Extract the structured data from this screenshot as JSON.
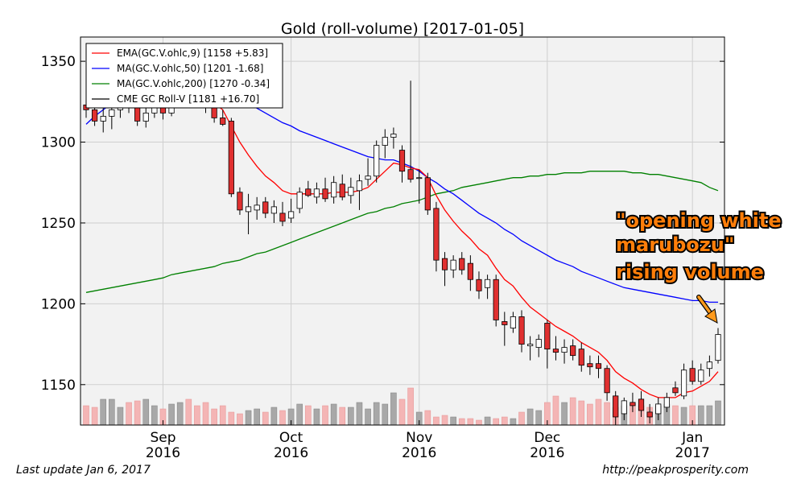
{
  "chart_data": {
    "type": "candlestick",
    "title": "Gold (roll-volume)  [2017-01-05]",
    "y_ticks": [
      1150,
      1200,
      1250,
      1300,
      1350
    ],
    "ylim": [
      1125,
      1365
    ],
    "x_ticks": [
      {
        "month": "Sep",
        "year": "2016"
      },
      {
        "month": "Oct",
        "year": "2016"
      },
      {
        "month": "Nov",
        "year": "2016"
      },
      {
        "month": "Dec",
        "year": "2016"
      },
      {
        "month": "Jan",
        "year": "2017"
      }
    ],
    "grid": true,
    "legend_placement": "top-left",
    "legend": [
      {
        "label": "EMA(GC.V.ohlc,9) [1158 +5.83]",
        "color": "#ff0000"
      },
      {
        "label": "MA(GC.V.ohlc,50) [1201 -1.68]",
        "color": "#0000ff"
      },
      {
        "label": "MA(GC.V.ohlc,200) [1270 -0.34]",
        "color": "#008000"
      },
      {
        "label": "CME GC Roll-V [1181 +16.70]",
        "color": "#000000"
      }
    ],
    "candles": [
      {
        "o": 1323,
        "h": 1330,
        "l": 1315,
        "c": 1320
      },
      {
        "o": 1320,
        "h": 1326,
        "l": 1310,
        "c": 1313
      },
      {
        "o": 1313,
        "h": 1322,
        "l": 1306,
        "c": 1316
      },
      {
        "o": 1316,
        "h": 1325,
        "l": 1308,
        "c": 1320
      },
      {
        "o": 1320,
        "h": 1330,
        "l": 1315,
        "c": 1325
      },
      {
        "o": 1325,
        "h": 1332,
        "l": 1318,
        "c": 1322
      },
      {
        "o": 1322,
        "h": 1328,
        "l": 1310,
        "c": 1313
      },
      {
        "o": 1313,
        "h": 1322,
        "l": 1309,
        "c": 1318
      },
      {
        "o": 1318,
        "h": 1330,
        "l": 1315,
        "c": 1325
      },
      {
        "o": 1325,
        "h": 1332,
        "l": 1314,
        "c": 1318
      },
      {
        "o": 1318,
        "h": 1340,
        "l": 1316,
        "c": 1338
      },
      {
        "o": 1338,
        "h": 1345,
        "l": 1335,
        "c": 1340
      },
      {
        "o": 1341,
        "h": 1346,
        "l": 1330,
        "c": 1332
      },
      {
        "o": 1331,
        "h": 1336,
        "l": 1322,
        "c": 1325
      },
      {
        "o": 1325,
        "h": 1330,
        "l": 1318,
        "c": 1322
      },
      {
        "o": 1323,
        "h": 1328,
        "l": 1312,
        "c": 1315
      },
      {
        "o": 1315,
        "h": 1320,
        "l": 1310,
        "c": 1311
      },
      {
        "o": 1313,
        "h": 1315,
        "l": 1266,
        "c": 1268
      },
      {
        "o": 1269,
        "h": 1272,
        "l": 1255,
        "c": 1258
      },
      {
        "o": 1257,
        "h": 1268,
        "l": 1243,
        "c": 1260
      },
      {
        "o": 1258,
        "h": 1266,
        "l": 1252,
        "c": 1261
      },
      {
        "o": 1263,
        "h": 1266,
        "l": 1253,
        "c": 1256
      },
      {
        "o": 1256,
        "h": 1264,
        "l": 1250,
        "c": 1260
      },
      {
        "o": 1256,
        "h": 1263,
        "l": 1248,
        "c": 1251
      },
      {
        "o": 1253,
        "h": 1265,
        "l": 1250,
        "c": 1257
      },
      {
        "o": 1259,
        "h": 1272,
        "l": 1256,
        "c": 1269
      },
      {
        "o": 1271,
        "h": 1276,
        "l": 1266,
        "c": 1267
      },
      {
        "o": 1266,
        "h": 1275,
        "l": 1262,
        "c": 1271
      },
      {
        "o": 1271,
        "h": 1278,
        "l": 1263,
        "c": 1265
      },
      {
        "o": 1266,
        "h": 1279,
        "l": 1262,
        "c": 1275
      },
      {
        "o": 1274,
        "h": 1280,
        "l": 1264,
        "c": 1266
      },
      {
        "o": 1267,
        "h": 1278,
        "l": 1262,
        "c": 1272
      },
      {
        "o": 1270,
        "h": 1280,
        "l": 1258,
        "c": 1276
      },
      {
        "o": 1277,
        "h": 1290,
        "l": 1273,
        "c": 1279
      },
      {
        "o": 1279,
        "h": 1301,
        "l": 1275,
        "c": 1298
      },
      {
        "o": 1298,
        "h": 1308,
        "l": 1290,
        "c": 1303
      },
      {
        "o": 1303,
        "h": 1309,
        "l": 1296,
        "c": 1305
      },
      {
        "o": 1295,
        "h": 1298,
        "l": 1275,
        "c": 1282
      },
      {
        "o": 1283,
        "h": 1338,
        "l": 1275,
        "c": 1277
      },
      {
        "o": 1278,
        "h": 1283,
        "l": 1262,
        "c": 1278
      },
      {
        "o": 1278,
        "h": 1281,
        "l": 1255,
        "c": 1258
      },
      {
        "o": 1259,
        "h": 1263,
        "l": 1220,
        "c": 1227
      },
      {
        "o": 1228,
        "h": 1232,
        "l": 1211,
        "c": 1221
      },
      {
        "o": 1221,
        "h": 1230,
        "l": 1216,
        "c": 1227
      },
      {
        "o": 1228,
        "h": 1232,
        "l": 1218,
        "c": 1221
      },
      {
        "o": 1225,
        "h": 1230,
        "l": 1208,
        "c": 1215
      },
      {
        "o": 1215,
        "h": 1220,
        "l": 1203,
        "c": 1208
      },
      {
        "o": 1210,
        "h": 1218,
        "l": 1203,
        "c": 1215
      },
      {
        "o": 1215,
        "h": 1218,
        "l": 1186,
        "c": 1190
      },
      {
        "o": 1189,
        "h": 1195,
        "l": 1174,
        "c": 1187
      },
      {
        "o": 1185,
        "h": 1195,
        "l": 1182,
        "c": 1192
      },
      {
        "o": 1192,
        "h": 1196,
        "l": 1170,
        "c": 1175
      },
      {
        "o": 1174,
        "h": 1180,
        "l": 1165,
        "c": 1175
      },
      {
        "o": 1173,
        "h": 1181,
        "l": 1167,
        "c": 1178
      },
      {
        "o": 1188,
        "h": 1190,
        "l": 1160,
        "c": 1172
      },
      {
        "o": 1172,
        "h": 1180,
        "l": 1165,
        "c": 1170
      },
      {
        "o": 1170,
        "h": 1178,
        "l": 1163,
        "c": 1173
      },
      {
        "o": 1174,
        "h": 1178,
        "l": 1165,
        "c": 1168
      },
      {
        "o": 1172,
        "h": 1176,
        "l": 1158,
        "c": 1162
      },
      {
        "o": 1163,
        "h": 1168,
        "l": 1156,
        "c": 1161
      },
      {
        "o": 1163,
        "h": 1168,
        "l": 1154,
        "c": 1160
      },
      {
        "o": 1160,
        "h": 1162,
        "l": 1140,
        "c": 1145
      },
      {
        "o": 1143,
        "h": 1146,
        "l": 1125,
        "c": 1130
      },
      {
        "o": 1132,
        "h": 1142,
        "l": 1128,
        "c": 1140
      },
      {
        "o": 1139,
        "h": 1145,
        "l": 1133,
        "c": 1137
      },
      {
        "o": 1141,
        "h": 1146,
        "l": 1130,
        "c": 1134
      },
      {
        "o": 1133,
        "h": 1138,
        "l": 1126,
        "c": 1130
      },
      {
        "o": 1132,
        "h": 1142,
        "l": 1128,
        "c": 1138
      },
      {
        "o": 1136,
        "h": 1145,
        "l": 1133,
        "c": 1142
      },
      {
        "o": 1148,
        "h": 1152,
        "l": 1143,
        "c": 1145
      },
      {
        "o": 1143,
        "h": 1163,
        "l": 1141,
        "c": 1159
      },
      {
        "o": 1160,
        "h": 1165,
        "l": 1150,
        "c": 1152
      },
      {
        "o": 1152,
        "h": 1163,
        "l": 1150,
        "c": 1159
      },
      {
        "o": 1160,
        "h": 1168,
        "l": 1155,
        "c": 1164
      },
      {
        "o": 1165,
        "h": 1185,
        "l": 1163,
        "c": 1181
      }
    ],
    "ema_9": [
      1329,
      1327,
      1326,
      1325,
      1325,
      1324,
      1322,
      1322,
      1322,
      1322,
      1325,
      1328,
      1329,
      1328,
      1327,
      1324,
      1320,
      1310,
      1300,
      1292,
      1285,
      1279,
      1275,
      1270,
      1268,
      1268,
      1268,
      1268,
      1268,
      1269,
      1269,
      1269,
      1270,
      1272,
      1277,
      1282,
      1287,
      1286,
      1284,
      1283,
      1278,
      1267,
      1258,
      1251,
      1245,
      1240,
      1234,
      1230,
      1222,
      1215,
      1211,
      1204,
      1198,
      1194,
      1190,
      1186,
      1183,
      1180,
      1176,
      1173,
      1170,
      1165,
      1158,
      1154,
      1151,
      1147,
      1144,
      1142,
      1142,
      1142,
      1145,
      1146,
      1149,
      1152,
      1158
    ],
    "ma_50": [
      1311,
      1316,
      1320,
      1324,
      1327,
      1330,
      1332,
      1334,
      1335,
      1336,
      1337,
      1337,
      1337,
      1337,
      1336,
      1335,
      1333,
      1330,
      1327,
      1324,
      1321,
      1318,
      1315,
      1312,
      1310,
      1307,
      1305,
      1303,
      1301,
      1299,
      1297,
      1295,
      1293,
      1291,
      1290,
      1289,
      1289,
      1287,
      1285,
      1282,
      1278,
      1275,
      1271,
      1268,
      1264,
      1260,
      1256,
      1253,
      1250,
      1246,
      1243,
      1239,
      1236,
      1233,
      1230,
      1227,
      1225,
      1223,
      1220,
      1218,
      1216,
      1214,
      1212,
      1210,
      1209,
      1208,
      1207,
      1206,
      1205,
      1204,
      1203,
      1202,
      1202,
      1201,
      1201
    ],
    "ma_200": [
      1207,
      1208,
      1209,
      1210,
      1211,
      1212,
      1213,
      1214,
      1215,
      1216,
      1218,
      1219,
      1220,
      1221,
      1222,
      1223,
      1225,
      1226,
      1227,
      1229,
      1231,
      1232,
      1234,
      1236,
      1238,
      1240,
      1242,
      1244,
      1246,
      1248,
      1250,
      1252,
      1254,
      1256,
      1257,
      1259,
      1260,
      1262,
      1263,
      1264,
      1266,
      1268,
      1269,
      1270,
      1272,
      1273,
      1274,
      1275,
      1276,
      1277,
      1278,
      1278,
      1279,
      1279,
      1280,
      1280,
      1281,
      1281,
      1281,
      1282,
      1282,
      1282,
      1282,
      1282,
      1281,
      1281,
      1280,
      1280,
      1279,
      1278,
      1277,
      1276,
      1275,
      1272,
      1270
    ],
    "volume": [
      12,
      11,
      16,
      16,
      11,
      14,
      15,
      16,
      12,
      10,
      13,
      14,
      16,
      12,
      14,
      10,
      12,
      8,
      7,
      9,
      10,
      8,
      11,
      9,
      10,
      13,
      12,
      10,
      12,
      13,
      11,
      11,
      14,
      10,
      14,
      13,
      20,
      16,
      23,
      8,
      9,
      5,
      6,
      5,
      4,
      4,
      3,
      5,
      4,
      5,
      4,
      8,
      10,
      9,
      14,
      18,
      14,
      17,
      15,
      13,
      16,
      14,
      11,
      12,
      13,
      12,
      11,
      12,
      13,
      12,
      11,
      12,
      12,
      12,
      15
    ]
  },
  "annotation": {
    "lines": [
      "\"opening white",
      "marubozu\"",
      "rising volume"
    ]
  },
  "footer": {
    "left": "Last update Jan  6, 2017",
    "right": "http://peakprosperity.com"
  }
}
